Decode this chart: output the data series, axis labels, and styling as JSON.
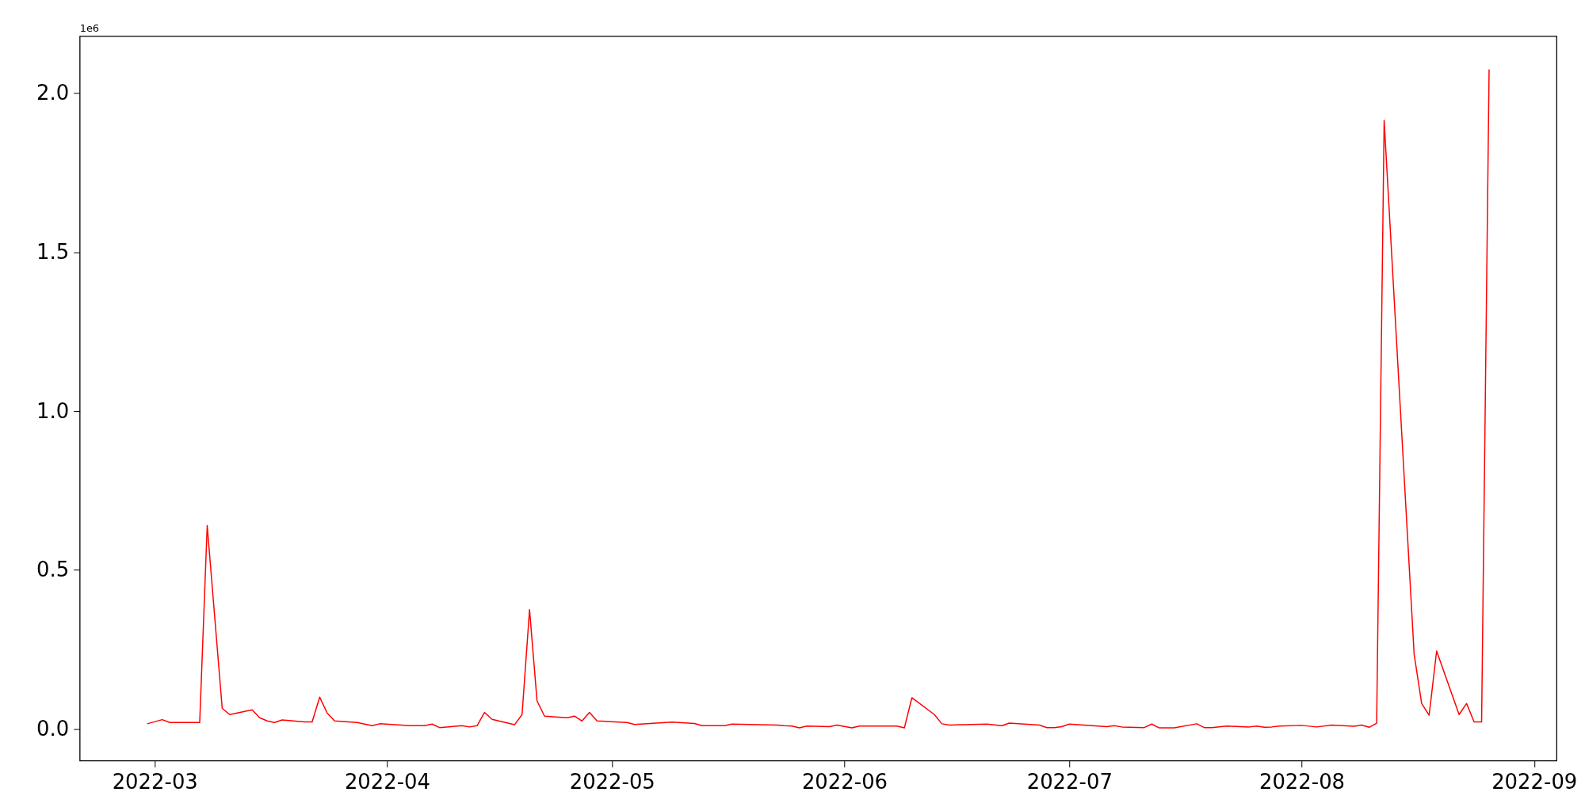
{
  "chart_data": {
    "type": "line",
    "annotations": [
      "1e6"
    ],
    "grid": false,
    "marker": "none",
    "line_style": "solid",
    "xlim": [
      "2022-02-19",
      "2022-09-04"
    ],
    "xticks": [
      "2022-03",
      "2022-04",
      "2022-05",
      "2022-06",
      "2022-07",
      "2022-08",
      "2022-09"
    ],
    "ylim": [
      -0.1,
      2.18
    ],
    "yticks": [
      {
        "value": 0,
        "label": "0.0"
      },
      0.5,
      {
        "value": 1,
        "label": "1.0"
      },
      1.5,
      {
        "value": 2,
        "label": "2.0"
      }
    ],
    "series": [
      {
        "color": "#ff0000",
        "x": [
          "2022-02-28",
          "2022-03-02",
          "2022-03-03",
          "2022-03-07",
          "2022-03-08",
          "2022-03-10",
          "2022-03-11",
          "2022-03-14",
          "2022-03-15",
          "2022-03-16",
          "2022-03-17",
          "2022-03-18",
          "2022-03-21",
          "2022-03-22",
          "2022-03-23",
          "2022-03-24",
          "2022-03-25",
          "2022-03-28",
          "2022-03-30",
          "2022-03-31",
          "2022-04-04",
          "2022-04-06",
          "2022-04-07",
          "2022-04-08",
          "2022-04-11",
          "2022-04-12",
          "2022-04-13",
          "2022-04-14",
          "2022-04-15",
          "2022-04-18",
          "2022-04-19",
          "2022-04-20",
          "2022-04-21",
          "2022-04-22",
          "2022-04-25",
          "2022-04-26",
          "2022-04-27",
          "2022-04-28",
          "2022-04-29",
          "2022-05-03",
          "2022-05-04",
          "2022-05-09",
          "2022-05-12",
          "2022-05-13",
          "2022-05-16",
          "2022-05-17",
          "2022-05-23",
          "2022-05-24",
          "2022-05-25",
          "2022-05-26",
          "2022-05-27",
          "2022-05-30",
          "2022-05-31",
          "2022-06-02",
          "2022-06-03",
          "2022-06-08",
          "2022-06-09",
          "2022-06-10",
          "2022-06-13",
          "2022-06-14",
          "2022-06-15",
          "2022-06-20",
          "2022-06-22",
          "2022-06-23",
          "2022-06-27",
          "2022-06-28",
          "2022-06-29",
          "2022-06-30",
          "2022-07-01",
          "2022-07-06",
          "2022-07-07",
          "2022-07-08",
          "2022-07-11",
          "2022-07-12",
          "2022-07-13",
          "2022-07-15",
          "2022-07-18",
          "2022-07-19",
          "2022-07-20",
          "2022-07-22",
          "2022-07-25",
          "2022-07-26",
          "2022-07-27",
          "2022-07-28",
          "2022-07-29",
          "2022-08-01",
          "2022-08-03",
          "2022-08-05",
          "2022-08-08",
          "2022-08-09",
          "2022-08-10",
          "2022-08-11",
          "2022-08-12",
          "2022-08-16",
          "2022-08-17",
          "2022-08-18",
          "2022-08-19",
          "2022-08-22",
          "2022-08-23",
          "2022-08-24",
          "2022-08-25",
          "2022-08-26"
        ],
        "values": [
          0.016,
          0.029,
          0.02,
          0.02,
          0.64,
          0.065,
          0.045,
          0.06,
          0.035,
          0.025,
          0.02,
          0.028,
          0.022,
          0.022,
          0.1,
          0.05,
          0.025,
          0.02,
          0.01,
          0.016,
          0.01,
          0.01,
          0.015,
          0.004,
          0.01,
          0.006,
          0.01,
          0.052,
          0.03,
          0.013,
          0.045,
          0.375,
          0.088,
          0.04,
          0.035,
          0.04,
          0.025,
          0.052,
          0.025,
          0.02,
          0.014,
          0.021,
          0.017,
          0.01,
          0.01,
          0.015,
          0.012,
          0.01,
          0.009,
          0.003,
          0.009,
          0.007,
          0.012,
          0.003,
          0.009,
          0.009,
          0.003,
          0.098,
          0.045,
          0.016,
          0.012,
          0.015,
          0.01,
          0.018,
          0.012,
          0.004,
          0.004,
          0.007,
          0.015,
          0.007,
          0.01,
          0.006,
          0.004,
          0.015,
          0.003,
          0.003,
          0.016,
          0.004,
          0.004,
          0.009,
          0.006,
          0.009,
          0.005,
          0.006,
          0.009,
          0.011,
          0.006,
          0.012,
          0.008,
          0.012,
          0.005,
          0.018,
          1.915,
          0.235,
          0.08,
          0.043,
          0.245,
          0.045,
          0.08,
          0.022,
          0.022,
          2.075
        ]
      }
    ]
  }
}
